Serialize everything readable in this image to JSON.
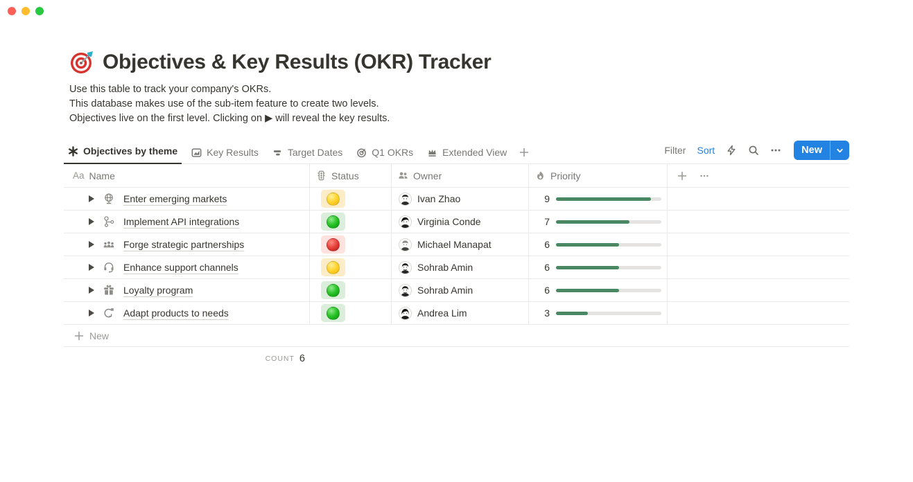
{
  "window": {
    "traffic_lights": {
      "close": "#ff5f57",
      "minimize": "#febc2e",
      "zoom": "#28c840"
    }
  },
  "page": {
    "title": "Objectives & Key Results (OKR) Tracker",
    "title_icon": "dart-target-emoji",
    "description_lines": [
      "Use this table to track your company's OKRs.",
      "This database makes use of the sub-item feature to create two levels.",
      "Objectives live on the first level. Clicking on ▶ will reveal the key results."
    ]
  },
  "toolbar": {
    "tabs": [
      {
        "label": "Objectives by theme",
        "icon": "asterisk-view-icon",
        "active": true
      },
      {
        "label": "Key Results",
        "icon": "chart-view-icon",
        "active": false
      },
      {
        "label": "Target Dates",
        "icon": "timeline-view-icon",
        "active": false
      },
      {
        "label": "Q1 OKRs",
        "icon": "target-view-icon",
        "active": false
      },
      {
        "label": "Extended View",
        "icon": "crown-view-icon",
        "active": false
      }
    ],
    "add_view_icon": "plus-icon",
    "filter_label": "Filter",
    "sort_label": "Sort",
    "icons": [
      "lightning-icon",
      "search-icon",
      "ellipsis-icon"
    ],
    "new_button_label": "New"
  },
  "table": {
    "columns": [
      {
        "label": "Name",
        "icon": "text-type-icon",
        "icon_text": "Aa"
      },
      {
        "label": "Status",
        "icon": "traffic-light-icon"
      },
      {
        "label": "Owner",
        "icon": "people-icon"
      },
      {
        "label": "Priority",
        "icon": "flame-icon"
      }
    ],
    "rows": [
      {
        "name": "Enter emerging markets",
        "icon": "globe-icon",
        "status": "yellow",
        "owner": "Ivan Zhao",
        "priority": 9
      },
      {
        "name": "Implement API integrations",
        "icon": "workflow-icon",
        "status": "green",
        "owner": "Virginia Conde",
        "priority": 7
      },
      {
        "name": "Forge strategic partnerships",
        "icon": "people-group-icon",
        "status": "red",
        "owner": "Michael Manapat",
        "priority": 6
      },
      {
        "name": "Enhance support channels",
        "icon": "headset-icon",
        "status": "yellow",
        "owner": "Sohrab Amin",
        "priority": 6
      },
      {
        "name": "Loyalty program",
        "icon": "gift-icon",
        "status": "green",
        "owner": "Sohrab Amin",
        "priority": 6
      },
      {
        "name": "Adapt products to needs",
        "icon": "adapt-icon",
        "status": "green",
        "owner": "Andrea Lim",
        "priority": 3
      }
    ],
    "priority_max": 10,
    "new_row_label": "New",
    "count_label": "COUNT",
    "count_value": "6"
  },
  "colors": {
    "accent_blue": "#2383e2",
    "priority_bar_green": "#4a8763",
    "priority_track": "#e4e3e1",
    "status_yellow_bg": "#fdecc8",
    "status_green_bg": "#dbeddb",
    "status_red_bg": "#ffe2dd",
    "status_yellow_dot": "#ffd52e",
    "status_green_dot": "#25c225",
    "status_red_dot": "#e23b35",
    "border": "#e9e9e7",
    "text_primary": "#37352f",
    "text_secondary": "#787774"
  }
}
